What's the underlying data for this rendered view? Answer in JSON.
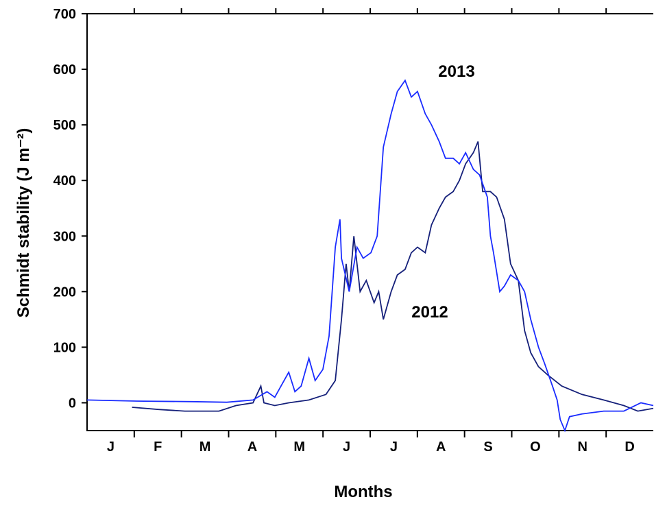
{
  "chart_data": {
    "type": "line",
    "ylabel": "Schmidt stability  (J m⁻²)",
    "xlabel": "Months",
    "months": [
      "J",
      "F",
      "M",
      "A",
      "M",
      "J",
      "J",
      "A",
      "S",
      "O",
      "N",
      "D"
    ],
    "xlim": [
      0,
      365
    ],
    "ylim": [
      -50,
      700
    ],
    "yticks": [
      0,
      100,
      200,
      300,
      400,
      500,
      600,
      700
    ],
    "series": [
      {
        "name": "2012",
        "color": "#15207a",
        "x": [
          29,
          46,
          63,
          85,
          96,
          107,
          112,
          114,
          121,
          130,
          143,
          154,
          160,
          164,
          167,
          169,
          172,
          176,
          180,
          185,
          188,
          191,
          196,
          200,
          205,
          209,
          213,
          218,
          222,
          227,
          231,
          236,
          240,
          244,
          249,
          252,
          255,
          260,
          264,
          269,
          273,
          278,
          282,
          286,
          291,
          297,
          306,
          319,
          333,
          346,
          355,
          365
        ],
        "values": [
          -8,
          -12,
          -15,
          -15,
          -5,
          0,
          30,
          0,
          -5,
          0,
          5,
          15,
          40,
          150,
          250,
          200,
          300,
          200,
          220,
          180,
          200,
          150,
          200,
          230,
          240,
          270,
          280,
          270,
          320,
          350,
          370,
          380,
          400,
          430,
          450,
          470,
          380,
          380,
          370,
          330,
          250,
          220,
          130,
          90,
          65,
          50,
          30,
          15,
          5,
          -5,
          -15,
          -10
        ]
      },
      {
        "name": "2013",
        "color": "#1a2cff",
        "x": [
          0,
          32,
          68,
          90,
          107,
          116,
          121,
          125,
          130,
          134,
          138,
          143,
          147,
          152,
          156,
          160,
          163,
          164,
          169,
          174,
          178,
          183,
          187,
          191,
          196,
          200,
          205,
          209,
          213,
          218,
          222,
          227,
          231,
          236,
          240,
          244,
          249,
          253,
          258,
          260,
          262,
          266,
          269,
          273,
          278,
          282,
          286,
          291,
          295,
          300,
          303,
          305,
          308,
          311,
          319,
          333,
          346,
          357,
          365
        ],
        "values": [
          5,
          3,
          2,
          1,
          5,
          20,
          10,
          30,
          55,
          20,
          30,
          80,
          40,
          60,
          120,
          280,
          330,
          260,
          200,
          280,
          260,
          270,
          300,
          460,
          520,
          560,
          580,
          550,
          560,
          520,
          500,
          470,
          440,
          440,
          430,
          450,
          420,
          410,
          370,
          300,
          270,
          200,
          210,
          230,
          220,
          200,
          150,
          100,
          70,
          30,
          5,
          -30,
          -50,
          -25,
          -20,
          -15,
          -15,
          0,
          -5
        ]
      }
    ]
  }
}
